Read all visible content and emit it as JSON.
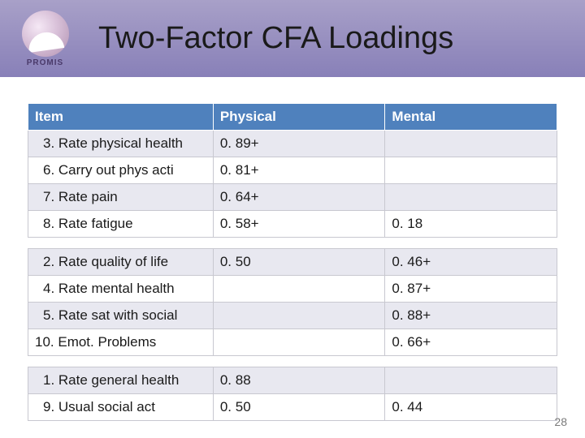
{
  "header": {
    "logo_text": "PROMIS",
    "title": "Two-Factor CFA Loadings"
  },
  "table": {
    "columns": [
      "Item",
      "Physical",
      "Mental"
    ],
    "column_widths": [
      "35%",
      "32.5%",
      "32.5%"
    ],
    "header_bg": "#4f81bd",
    "header_fg": "#ffffff",
    "row_bg": "#ffffff",
    "row_alt_bg": "#e8e8f0",
    "border_color": "#c8c8d0",
    "font_size": 17,
    "groups": [
      {
        "rows": [
          {
            "item": "3. Rate physical health",
            "physical": "0. 89+",
            "mental": "",
            "alt": true
          },
          {
            "item": "6. Carry out phys acti",
            "physical": "0. 81+",
            "mental": "",
            "alt": false
          },
          {
            "item": "7. Rate pain",
            "physical": "0. 64+",
            "mental": "",
            "alt": true
          },
          {
            "item": "8. Rate fatigue",
            "physical": "0. 58+",
            "mental": "0. 18",
            "alt": false
          }
        ]
      },
      {
        "rows": [
          {
            "item": "2. Rate quality of life",
            "physical": "0. 50",
            "mental": "0. 46+",
            "alt": true
          },
          {
            "item": "4. Rate mental health",
            "physical": "",
            "mental": "0. 87+",
            "alt": false
          },
          {
            "item": "5. Rate sat with social",
            "physical": "",
            "mental": "0. 88+",
            "alt": true
          },
          {
            "item": "10. Emot. Problems",
            "physical": "",
            "mental": "0. 66+",
            "alt": false,
            "outdent": true
          }
        ]
      },
      {
        "rows": [
          {
            "item": "1. Rate general  health",
            "physical": "0. 88",
            "mental": "",
            "alt": true
          },
          {
            "item": "9. Usual social act",
            "physical": "0. 50",
            "mental": "0. 44",
            "alt": false
          }
        ]
      }
    ]
  },
  "page_number": "28"
}
